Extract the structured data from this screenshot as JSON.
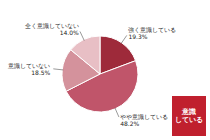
{
  "chart_data": {
    "type": "pie",
    "categories": [
      "強く意識している",
      "やや意識している",
      "意識していない",
      "全く意識していない"
    ],
    "values": [
      19.3,
      48.2,
      18.5,
      14.0
    ],
    "value_labels": [
      "19.3%",
      "48.2%",
      "18.5%",
      "14.0%"
    ],
    "colors": [
      "#9e2a3a",
      "#c0556a",
      "#d4929c",
      "#e8bfc5"
    ],
    "data_labels": true,
    "annotations": [
      {
        "text": "意識\nしている",
        "color": "#c0202e"
      }
    ]
  }
}
